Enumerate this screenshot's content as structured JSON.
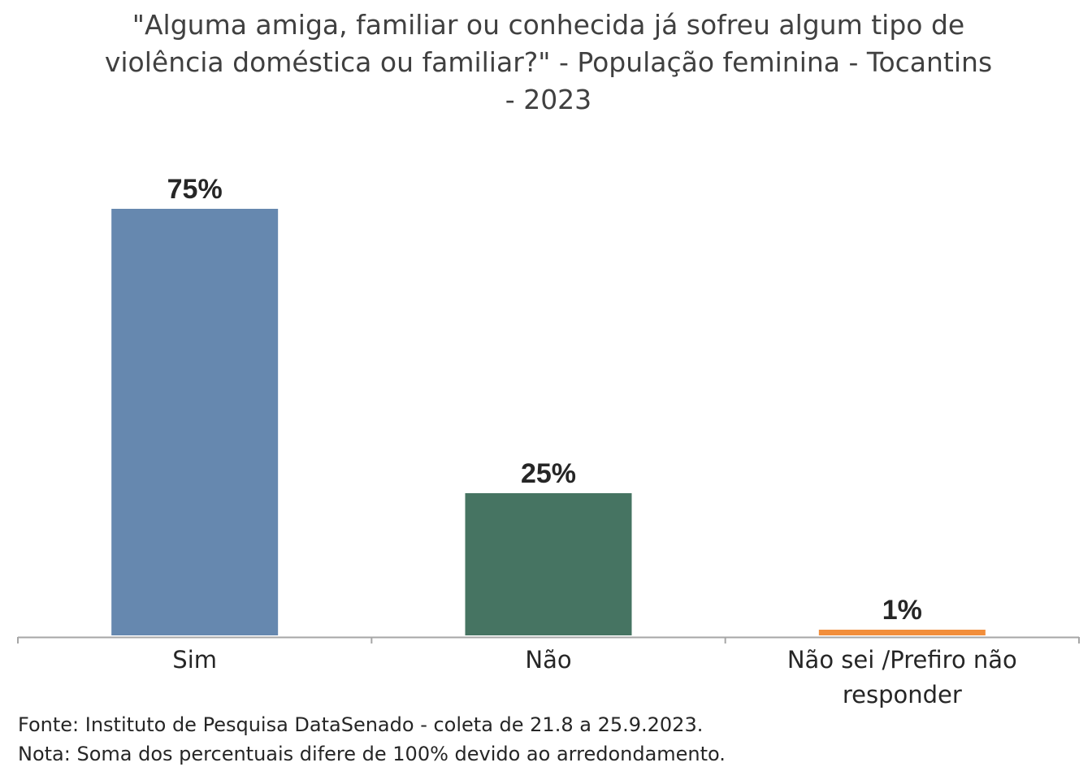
{
  "chart_data": {
    "type": "bar",
    "title": "\"Alguma amiga, familiar ou conhecida já sofreu algum tipo de violência doméstica ou familiar?\" - População feminina - Tocantins - 2023",
    "categories": [
      [
        "Sim"
      ],
      [
        "Não"
      ],
      [
        "Não sei /Prefiro não",
        "responder"
      ]
    ],
    "values": [
      75,
      25,
      1
    ],
    "value_labels": [
      "75%",
      "25%",
      "1%"
    ],
    "colors": [
      "#6688AF",
      "#467462",
      "#F28E3B"
    ],
    "ylim": [
      0,
      100
    ],
    "grid": false,
    "legend": "none"
  },
  "footnotes": {
    "source": "Fonte: Instituto de Pesquisa DataSenado - coleta de 21.8 a 25.9.2023.",
    "note": "Nota: Soma dos percentuais difere de 100% devido ao arredondamento."
  }
}
